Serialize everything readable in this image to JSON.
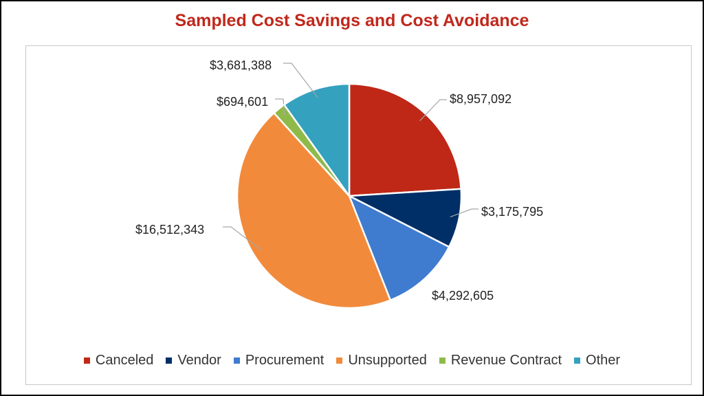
{
  "chart_data": {
    "type": "pie",
    "title": "Sampled Cost Savings and Cost Avoidance",
    "legend_position": "bottom",
    "slices": [
      {
        "name": "Canceled",
        "value": 8957092,
        "label": "$8,957,092",
        "color": "#bf2817"
      },
      {
        "name": "Vendor",
        "value": 3175795,
        "label": "$3,175,795",
        "color": "#002f67"
      },
      {
        "name": "Procurement",
        "value": 4292605,
        "label": "$4,292,605",
        "color": "#3f7ccf"
      },
      {
        "name": "Unsupported",
        "value": 16512343,
        "label": "$16,512,343",
        "color": "#f28a3b"
      },
      {
        "name": "Revenue Contract",
        "value": 694601,
        "label": "$694,601",
        "color": "#8fba4a"
      },
      {
        "name": "Other",
        "value": 3681388,
        "label": "$3,681,388",
        "color": "#34a1bf"
      }
    ]
  }
}
